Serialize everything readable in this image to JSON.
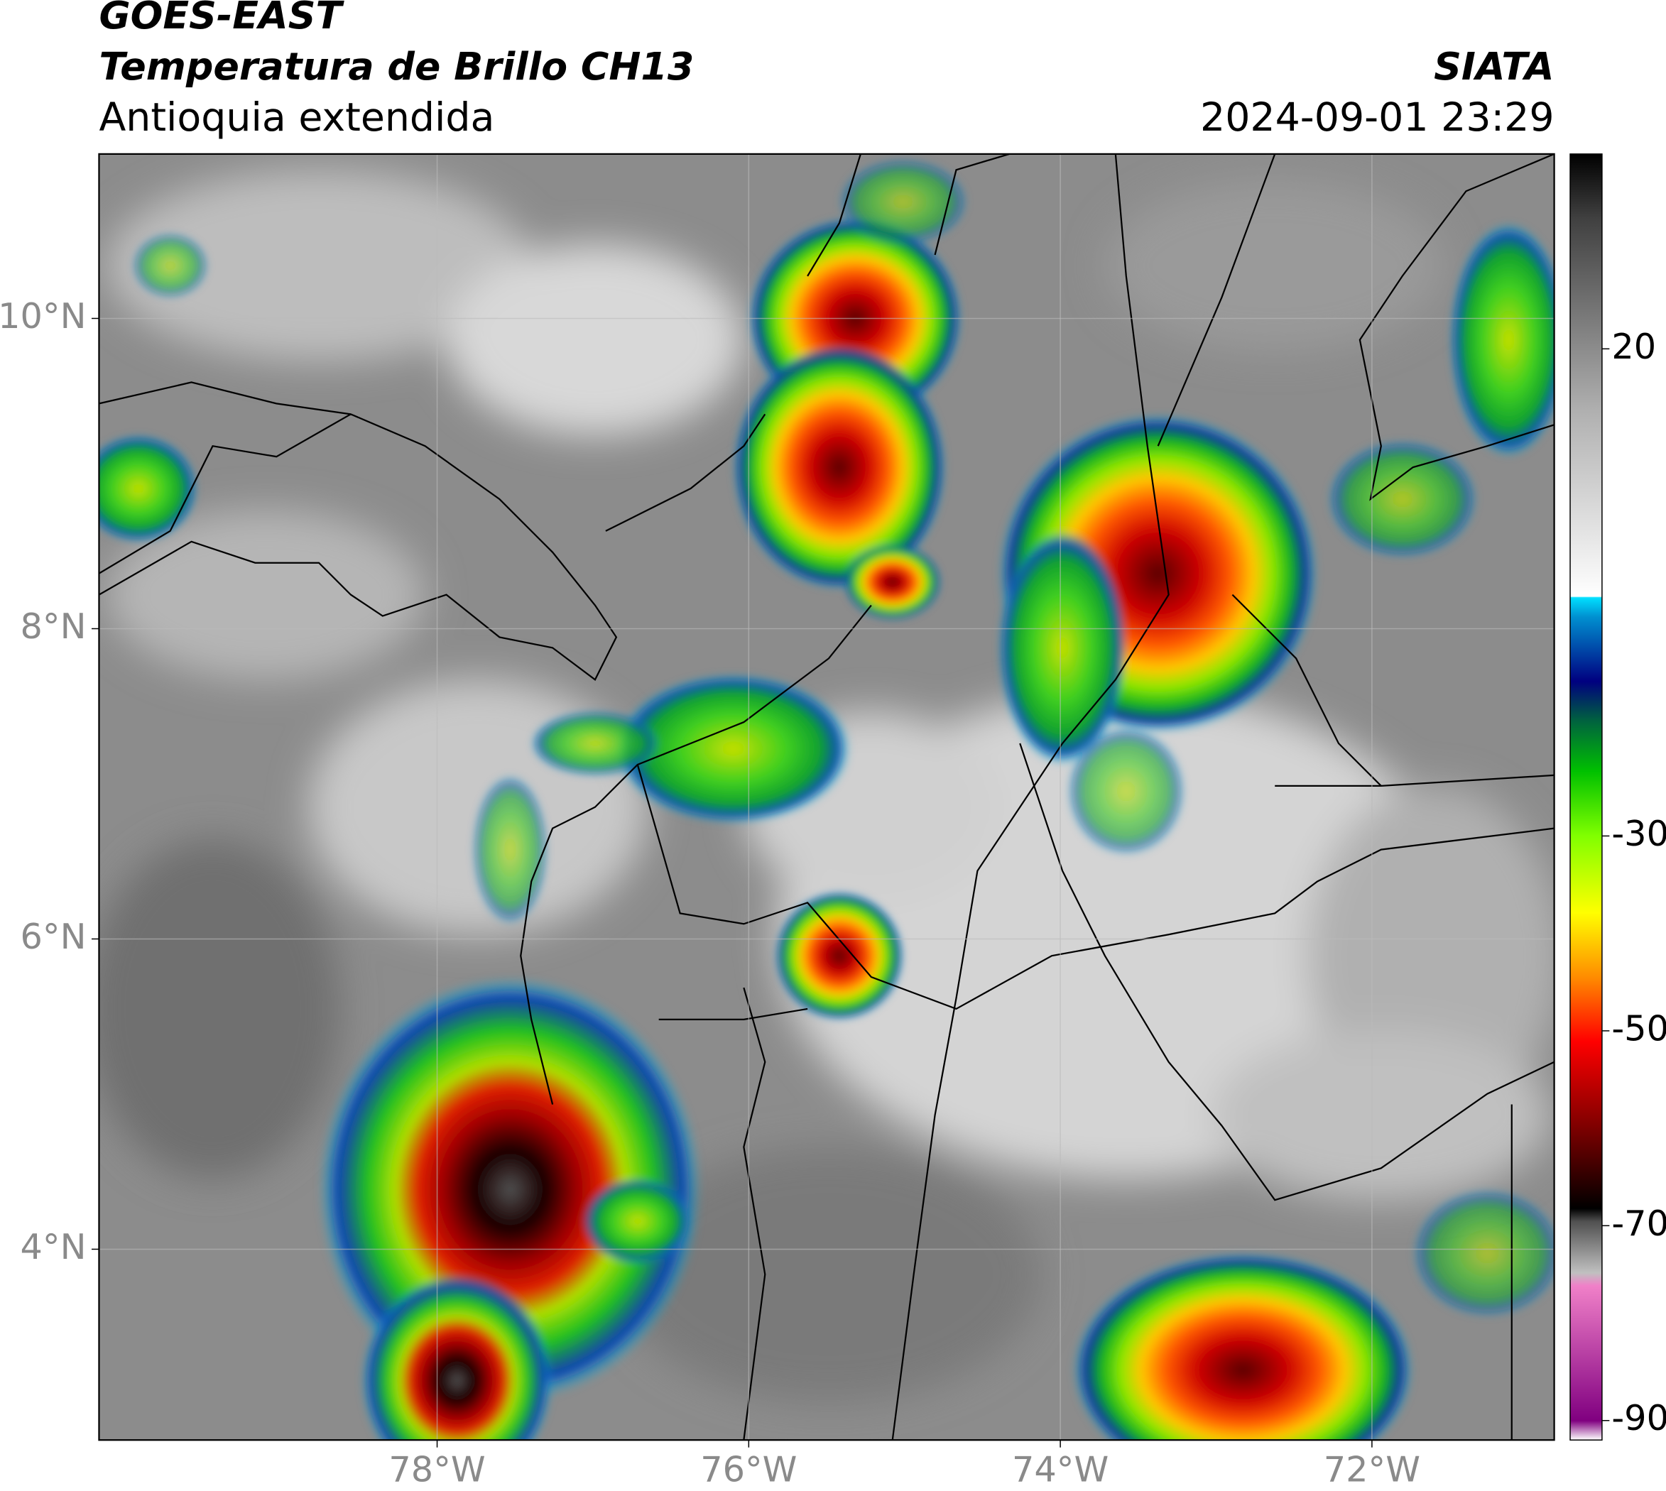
{
  "header": {
    "satellite": "GOES-EAST",
    "product": "Temperatura de Brillo CH13",
    "region": "Antioquia extendida",
    "agency": "SIATA",
    "timestamp": "2024-09-01 23:29"
  },
  "map": {
    "xlim": [
      -80.17,
      -70.83
    ],
    "ylim": [
      2.77,
      11.06
    ],
    "xticks": [
      {
        "value": -78,
        "label": "78°W"
      },
      {
        "value": -76,
        "label": "76°W"
      },
      {
        "value": -74,
        "label": "74°W"
      },
      {
        "value": -72,
        "label": "72°W"
      }
    ],
    "yticks": [
      {
        "value": 10,
        "label": "10°N"
      },
      {
        "value": 8,
        "label": "8°N"
      },
      {
        "value": 6,
        "label": "6°N"
      },
      {
        "value": 4,
        "label": "4°N"
      }
    ],
    "grid": true
  },
  "colorbar": {
    "lim": [
      -92,
      40
    ],
    "ticks": [
      20,
      -30,
      -50,
      -70,
      -90
    ]
  }
}
